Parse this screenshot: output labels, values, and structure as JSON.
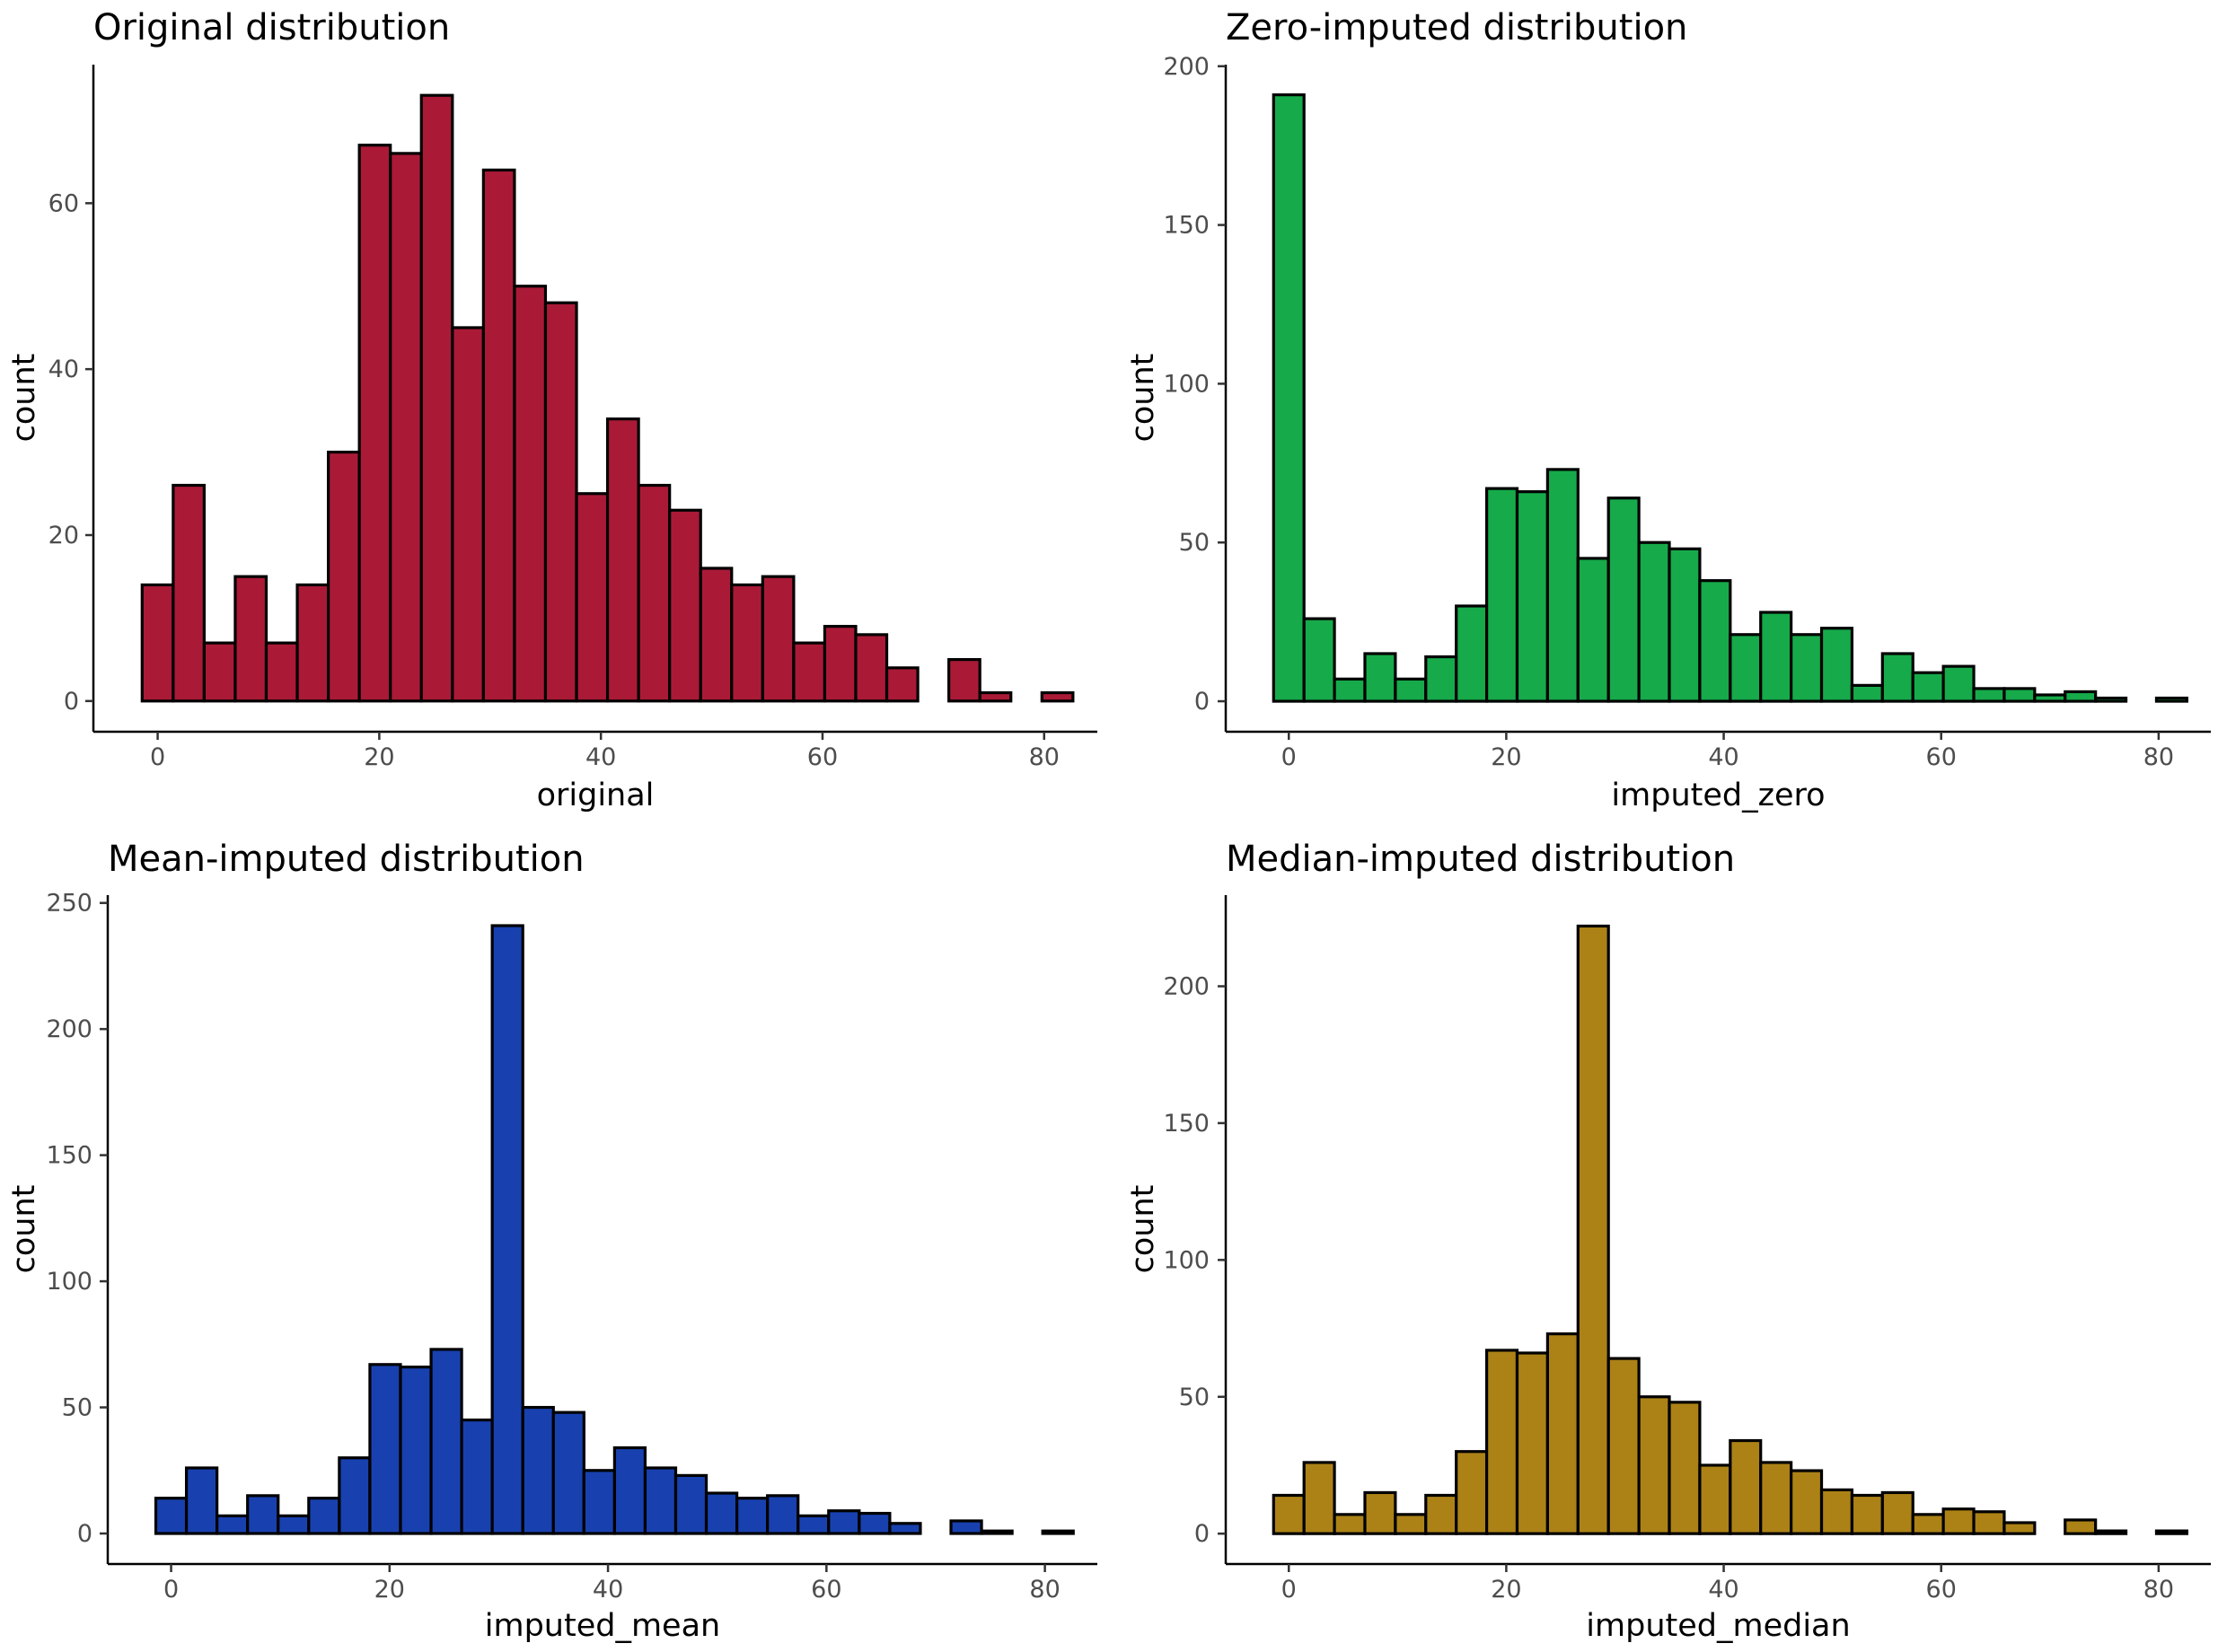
{
  "chart_data": [
    {
      "type": "bar",
      "title": "Original distribution",
      "xlabel": "original",
      "ylabel": "count",
      "color": "#AA1A37",
      "xlim": [
        -5.8,
        84.8
      ],
      "ylim": [
        -3.7,
        76.7
      ],
      "xticks": [
        0,
        20,
        40,
        60,
        80
      ],
      "yticks": [
        0,
        20,
        40,
        60
      ],
      "bin_width": 2.8,
      "bin_start": -1.4,
      "values": [
        14,
        26,
        7,
        15,
        7,
        14,
        30,
        67,
        66,
        73,
        45,
        64,
        50,
        48,
        25,
        34,
        26,
        23,
        16,
        14,
        15,
        7,
        9,
        8,
        4,
        0,
        5,
        1,
        0,
        1
      ]
    },
    {
      "type": "bar",
      "title": "Zero-imputed distribution",
      "xlabel": "imputed_zero",
      "ylabel": "count",
      "color": "#16AA4A",
      "xlim": [
        -5.8,
        84.8
      ],
      "ylim": [
        -9.6,
        200.5
      ],
      "xticks": [
        0,
        20,
        40,
        60,
        80
      ],
      "yticks": [
        0,
        50,
        100,
        150,
        200
      ],
      "bin_width": 2.8,
      "bin_start": -1.4,
      "values": [
        191,
        26,
        7,
        15,
        7,
        14,
        30,
        67,
        66,
        73,
        45,
        64,
        50,
        48,
        38,
        21,
        28,
        21,
        23,
        5,
        15,
        9,
        11,
        4,
        4,
        2,
        3,
        1,
        0,
        1
      ]
    },
    {
      "type": "bar",
      "title": "Mean-imputed distribution",
      "xlabel": "imputed_mean",
      "ylabel": "count",
      "color": "#1841AF",
      "xlim": [
        -5.8,
        84.8
      ],
      "ylim": [
        -12.1,
        253.1
      ],
      "xticks": [
        0,
        20,
        40,
        60,
        80
      ],
      "yticks": [
        0,
        50,
        100,
        150,
        200,
        250
      ],
      "bin_width": 2.8,
      "bin_start": -1.4,
      "values": [
        14,
        26,
        7,
        15,
        7,
        14,
        30,
        67,
        66,
        73,
        45,
        241,
        50,
        48,
        25,
        34,
        26,
        23,
        16,
        14,
        15,
        7,
        9,
        8,
        4,
        0,
        5,
        1,
        0,
        1
      ]
    },
    {
      "type": "bar",
      "title": "Median-imputed distribution",
      "xlabel": "imputed_median",
      "ylabel": "count",
      "color": "#AC8216",
      "xlim": [
        -5.8,
        84.8
      ],
      "ylim": [
        -11.1,
        233.3
      ],
      "xticks": [
        0,
        20,
        40,
        60,
        80
      ],
      "yticks": [
        0,
        50,
        100,
        150,
        200
      ],
      "bin_width": 2.8,
      "bin_start": -1.4,
      "values": [
        14,
        26,
        7,
        15,
        7,
        14,
        30,
        67,
        66,
        73,
        222,
        64,
        50,
        48,
        25,
        34,
        26,
        23,
        16,
        14,
        15,
        7,
        9,
        8,
        4,
        0,
        5,
        1,
        0,
        1
      ]
    }
  ]
}
